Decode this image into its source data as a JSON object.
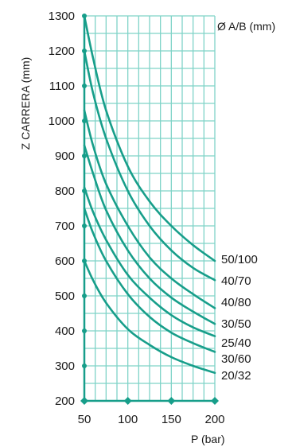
{
  "chart_data": {
    "type": "line",
    "title": "",
    "xlabel": "P (bar)",
    "ylabel": "Z CARRERA (mm)",
    "legend_title": "Ø A/B (mm)",
    "xlim": [
      50,
      200
    ],
    "ylim": [
      200,
      1300
    ],
    "x_ticks": [
      50,
      100,
      150,
      200
    ],
    "y_ticks": [
      200,
      300,
      400,
      500,
      600,
      700,
      800,
      900,
      1000,
      1100,
      1200,
      1300
    ],
    "grid": true,
    "colors": {
      "series": "#179e8a",
      "grid": "#7fd3c8",
      "text": "#1a1a1a"
    },
    "series": [
      {
        "name": "50/100",
        "x": [
          50,
          60,
          75,
          100,
          125,
          150,
          175,
          200
        ],
        "y": [
          1300,
          1180,
          1030,
          870,
          770,
          700,
          645,
          600
        ]
      },
      {
        "name": "40/70",
        "x": [
          50,
          60,
          75,
          100,
          125,
          150,
          175,
          200
        ],
        "y": [
          1200,
          1080,
          950,
          800,
          700,
          630,
          580,
          545
        ]
      },
      {
        "name": "40/80",
        "x": [
          50,
          60,
          75,
          100,
          125,
          150,
          175,
          200
        ],
        "y": [
          1030,
          930,
          820,
          700,
          610,
          550,
          505,
          465
        ]
      },
      {
        "name": "30/50",
        "x": [
          50,
          60,
          75,
          100,
          125,
          150,
          175,
          200
        ],
        "y": [
          930,
          850,
          745,
          630,
          550,
          495,
          455,
          420
        ]
      },
      {
        "name": "25/40",
        "x": [
          50,
          60,
          75,
          100,
          125,
          150,
          175,
          200
        ],
        "y": [
          810,
          740,
          660,
          560,
          495,
          445,
          410,
          385
        ]
      },
      {
        "name": "30/60",
        "x": [
          50,
          60,
          75,
          100,
          125,
          150,
          175,
          200
        ],
        "y": [
          750,
          680,
          600,
          505,
          440,
          395,
          365,
          340
        ]
      },
      {
        "name": "20/32",
        "x": [
          50,
          60,
          75,
          100,
          125,
          150,
          175,
          200
        ],
        "y": [
          600,
          545,
          480,
          405,
          360,
          325,
          300,
          280
        ]
      }
    ]
  }
}
